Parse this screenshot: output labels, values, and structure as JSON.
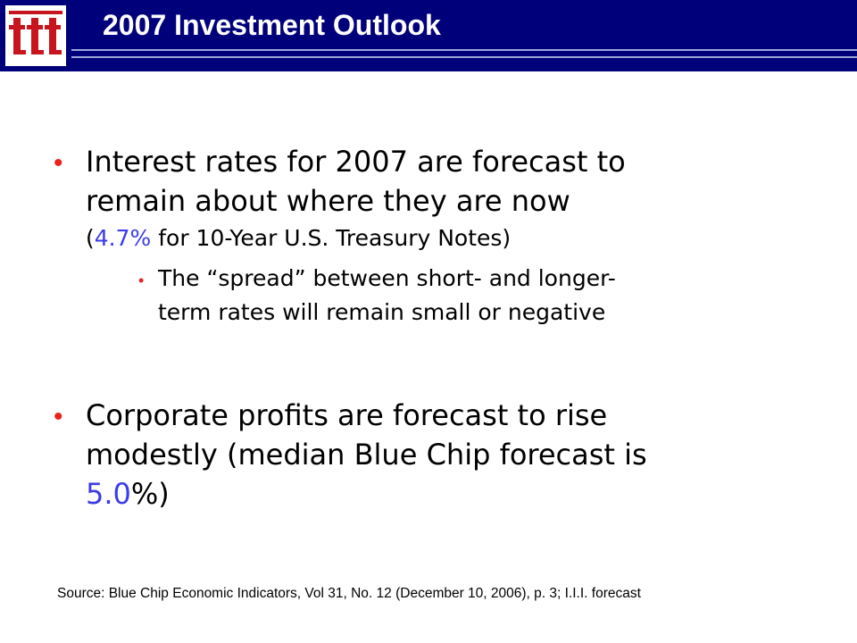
{
  "header": {
    "title": "2007 Investment Outlook",
    "logo_icon": "iii-logo-icon",
    "background_color": "#00007a",
    "rule_color": "#9aa8d8"
  },
  "bullets": {
    "marker": "•",
    "marker_color": "#e8241c",
    "highlight_color": "#3b3be8",
    "first": {
      "line1": "Interest rates for 2007 are forecast to",
      "line2": "remain about where they are now",
      "line3_prefix": "(",
      "line3_value": "4.7%",
      "line3_suffix": " for 10-Year U.S. Treasury Notes)",
      "sub": {
        "line1": "The “spread” between short- and longer-",
        "line2": "term rates will remain small or negative"
      }
    },
    "second": {
      "line1": "Corporate profits are forecast to rise",
      "line2": "modestly (median Blue Chip forecast is",
      "line3_value": "5.0",
      "line3_suffix": "%)"
    }
  },
  "footer": {
    "source": "Source: Blue Chip Economic Indicators, Vol 31, No. 12 (December 10, 2006), p. 3; I.I.I. forecast"
  }
}
